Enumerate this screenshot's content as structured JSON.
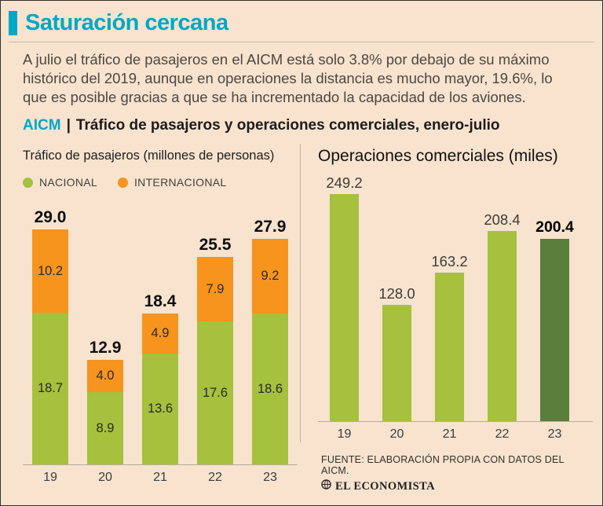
{
  "header": {
    "title": "Saturación cercana",
    "intro": "A julio el tráfico de pasajeros en el AICM está solo 3.8% por debajo de su máximo histórico del 2019, aunque en operaciones la distancia es mucho mayor, 19.6%, lo que es posible gracias a que se ha incrementado la capacidad de los aviones.",
    "subtitle_prefix": "AICM",
    "subtitle_sep": "|",
    "subtitle_text": "Tráfico de pasajeros y operaciones comerciales, enero-julio"
  },
  "colors": {
    "accent_cyan": "#00a8c7",
    "nacional_green": "#a5c13d",
    "internacional_orange": "#f6941e",
    "highlight_green": "#5a7e3b",
    "background": "#f7e3ce"
  },
  "chart_data": [
    {
      "type": "bar",
      "stacked": true,
      "title": "Tráfico de pasajeros (millones de personas)",
      "categories": [
        "19",
        "20",
        "21",
        "22",
        "23"
      ],
      "series": [
        {
          "name": "NACIONAL",
          "color": "#a5c13d",
          "values": [
            18.7,
            8.9,
            13.6,
            17.6,
            18.6
          ]
        },
        {
          "name": "INTERNACIONAL",
          "color": "#f6941e",
          "values": [
            10.2,
            4.0,
            4.9,
            7.9,
            9.2
          ]
        }
      ],
      "totals": [
        29.0,
        12.9,
        18.4,
        25.5,
        27.9
      ],
      "xlabel": "",
      "ylabel": "millones de personas",
      "ylim": [
        0,
        29
      ],
      "legend_position": "top",
      "grid": false
    },
    {
      "type": "bar",
      "title": "Operaciones comerciales (miles)",
      "categories": [
        "19",
        "20",
        "21",
        "22",
        "23"
      ],
      "values": [
        249.2,
        128.0,
        163.2,
        208.4,
        200.4
      ],
      "bar_color": "#a5c13d",
      "highlight_index": 4,
      "highlight_color": "#5a7e3b",
      "xlabel": "",
      "ylabel": "miles",
      "ylim": [
        0,
        250
      ],
      "grid": false
    }
  ],
  "footer": {
    "source": "FUENTE: ELABORACIÓN PROPIA CON DATOS DEL AICM.",
    "brand": "EL ECONOMISTA"
  }
}
